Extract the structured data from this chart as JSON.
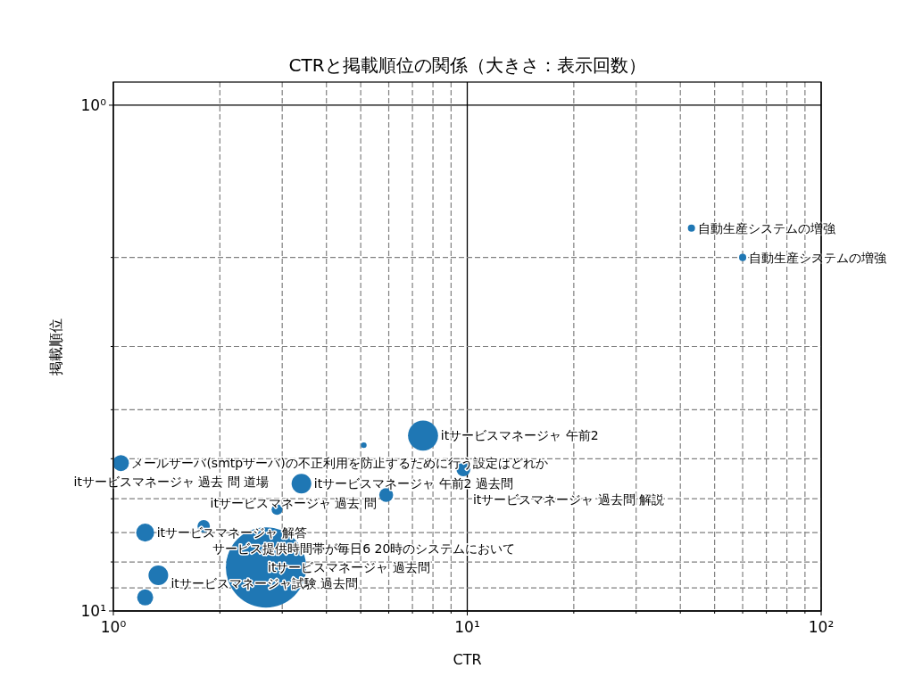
{
  "chart_data": {
    "type": "bubble",
    "title": "CTRと掲載順位の関係（大きさ：表示回数）",
    "xlabel": "CTR",
    "ylabel": "掲載順位",
    "log": "xy",
    "grid": true,
    "color": "#1f77b4",
    "xlim": [
      1,
      100
    ],
    "xticks": [
      {
        "value": 1,
        "label": "10⁰"
      },
      {
        "value": 10,
        "label": "10¹"
      },
      {
        "value": 100,
        "label": "10²"
      }
    ],
    "ylim": [
      10,
      0.9
    ],
    "yticks": [
      {
        "value": 1,
        "label": "10⁰"
      },
      {
        "value": 10,
        "label": "10¹"
      }
    ],
    "x": [
      43,
      60,
      1.05,
      7.5,
      9.75,
      3.4,
      5.9,
      2.9,
      1.8,
      1.23,
      2.7,
      1.34,
      5.1,
      1.23
    ],
    "values": [
      1.75,
      2.0,
      5.1,
      4.5,
      5.25,
      5.6,
      5.9,
      6.3,
      6.8,
      7.0,
      8.2,
      8.5,
      4.7,
      9.4
    ],
    "sizes": [
      0.008,
      0.008,
      0.04,
      0.14,
      0.03,
      0.06,
      0.03,
      0.018,
      0.024,
      0.05,
      1,
      0.06,
      0.005,
      0.04
    ],
    "annotations": [
      {
        "text": "自動生産システムの増強",
        "x": 43,
        "y": 1.75
      },
      {
        "text": "自動生産システムの増強",
        "x": 60,
        "y": 2.0
      },
      {
        "text": "メールサーバ(smtpサーバ)の不正利用を防止するために行う設定はどれか",
        "x": 1.05,
        "y": 5.1
      },
      {
        "text": "itサービスマネージャ 午前2",
        "x": 7.5,
        "y": 4.5
      },
      {
        "text": "itサービスマネージャ 過去問 解説",
        "x": 9.75,
        "y": 5.25
      },
      {
        "text": "itサービスマネージャ 午前2 過去問",
        "x": 3.4,
        "y": 5.6
      },
      {
        "text": "itサービスマネージャ 過去 問",
        "x": 5.9,
        "y": 5.9
      },
      {
        "text": "itサービスマネージャ 過去 問 道場",
        "x": 2.9,
        "y": 6.3
      },
      {
        "text": "サービス提供時間帯が毎日6 20時のシステムにおいて",
        "x": 1.8,
        "y": 6.8
      },
      {
        "text": "itサービスマネージャ 解答",
        "x": 1.23,
        "y": 7.0
      },
      {
        "text": "itサービスマネージャ 過去問",
        "x": 2.7,
        "y": 8.2
      },
      {
        "text": "itサービスマネージャ試験 過去問",
        "x": 1.34,
        "y": 8.5
      }
    ]
  }
}
